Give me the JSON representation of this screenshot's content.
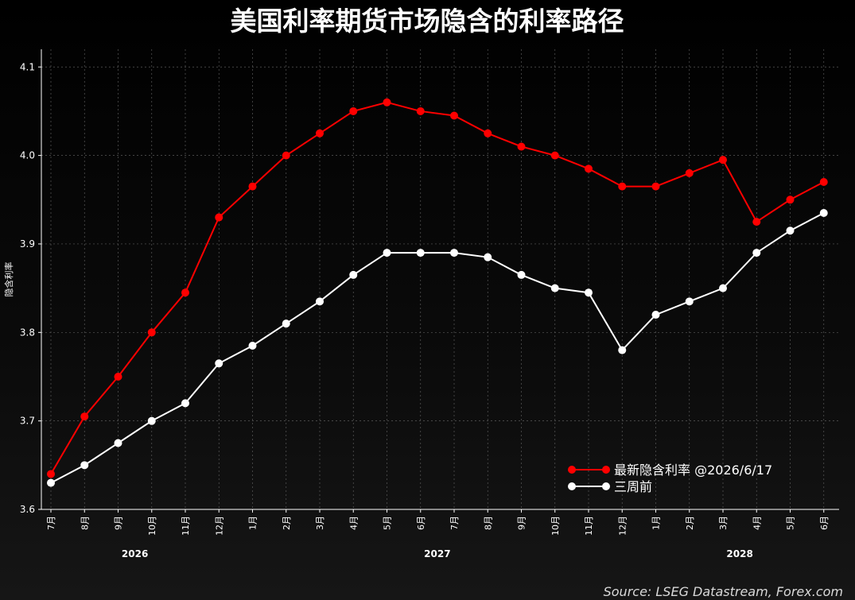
{
  "chart_data": {
    "type": "line",
    "title": "美国利率期货市场隐含的利率路径",
    "ylabel": "隐含利率",
    "xlabel": "",
    "ylim": [
      3.6,
      4.12
    ],
    "yticks": [
      "3.6",
      "3.7",
      "3.8",
      "3.9",
      "4.0",
      "4.1"
    ],
    "grid": true,
    "legend_position": "bottom-right",
    "categories": [
      "7月",
      "8月",
      "9月",
      "10月",
      "11月",
      "12月",
      "1月",
      "2月",
      "3月",
      "4月",
      "5月",
      "6月",
      "7月",
      "8月",
      "9月",
      "10月",
      "11月",
      "12月",
      "1月",
      "2月",
      "3月",
      "4月",
      "5月",
      "6月"
    ],
    "years": [
      {
        "label": "2026",
        "from": 0,
        "to": 5
      },
      {
        "label": "2027",
        "from": 6,
        "to": 17
      },
      {
        "label": "2028",
        "from": 18,
        "to": 23
      }
    ],
    "series": [
      {
        "name": "最新隐含利率 @2026/6/17",
        "color": "#ff0000",
        "values": [
          3.64,
          3.705,
          3.75,
          3.8,
          3.845,
          3.93,
          3.965,
          4.0,
          4.025,
          4.05,
          4.06,
          4.05,
          4.045,
          4.025,
          4.01,
          4.0,
          3.985,
          3.965,
          3.965,
          3.98,
          3.995,
          3.925,
          3.95,
          3.97
        ]
      },
      {
        "name": "三周前",
        "color": "#ffffff",
        "values": [
          3.63,
          3.65,
          3.675,
          3.7,
          3.72,
          3.765,
          3.785,
          3.81,
          3.835,
          3.865,
          3.89,
          3.89,
          3.89,
          3.885,
          3.865,
          3.85,
          3.845,
          3.78,
          3.82,
          3.835,
          3.85,
          3.89,
          3.915,
          3.935
        ]
      }
    ],
    "source": "Source: LSEG Datastream, Forex.com"
  }
}
